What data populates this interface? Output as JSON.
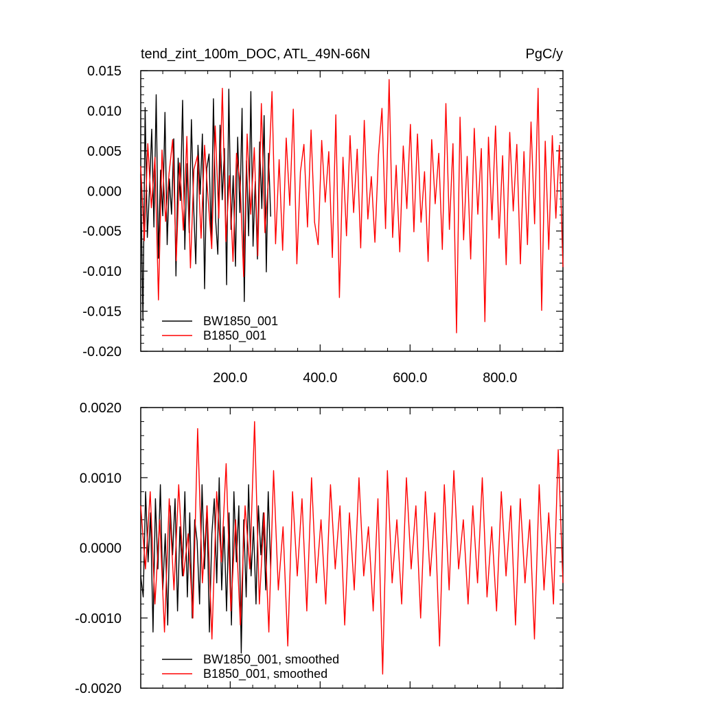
{
  "chart_data": [
    {
      "type": "line",
      "title": "tend_zint_100m_DOC, ATL_49N-66N",
      "units": "PgC/y",
      "xlim": [
        1,
        940
      ],
      "ylim": [
        -0.02,
        0.015
      ],
      "yticks": [
        -0.02,
        -0.015,
        -0.01,
        -0.005,
        0.0,
        0.005,
        0.01,
        0.015
      ],
      "ytick_labels": [
        "-0.020",
        "-0.015",
        "-0.010",
        "-0.005",
        "0.000",
        "0.005",
        "0.010",
        "0.015"
      ],
      "xticks": [
        200,
        400,
        600,
        800
      ],
      "xtick_labels": [
        "200.0",
        "400.0",
        "600.0",
        "800.0"
      ],
      "legend_position": "bottom-left",
      "series": [
        {
          "name": "BW1850_001",
          "color": "#000000",
          "x_range": [
            1,
            290
          ],
          "values": [
            0.0021,
            -0.0162,
            0.0104,
            -0.0058,
            0.0003,
            0.0077,
            -0.0045,
            0.012,
            -0.0084,
            0.0026,
            -0.0031,
            0.0098,
            -0.0067,
            0.0015,
            -0.0029,
            0.0065,
            -0.0106,
            0.0041,
            -0.0012,
            0.0113,
            -0.0073,
            0.0034,
            -0.0052,
            0.0089,
            -0.0018,
            -0.0091,
            0.0057,
            -0.0004,
            0.0071,
            -0.0122,
            0.0028,
            0.0046,
            -0.0063,
            0.0115,
            -0.0036,
            -0.0079,
            0.0082,
            -0.0011,
            0.0053,
            -0.0117,
            0.0127,
            -0.0048,
            0.0019,
            -0.0094,
            0.0067,
            -0.0027,
            0.0103,
            -0.0138,
            0.0038,
            -0.0056,
            0.0124,
            -0.0069,
            0.0012,
            -0.0085,
            0.0061,
            -0.0022,
            0.0094,
            -0.0101,
            0.0047,
            -0.0032
          ]
        },
        {
          "name": "B1850_001",
          "color": "#ff0000",
          "x_range": [
            1,
            940
          ],
          "values": [
            0.0031,
            -0.0062,
            0.0059,
            -0.0021,
            0.0042,
            -0.0136,
            0.0051,
            -0.0038,
            0.0022,
            0.0064,
            -0.0087,
            0.0035,
            -0.0049,
            0.0068,
            -0.0096,
            0.0027,
            0.0044,
            -0.0059,
            0.0057,
            -0.0011,
            -0.0072,
            0.0081,
            -0.0034,
            0.0128,
            -0.0063,
            0.0019,
            -0.0088,
            0.0047,
            0.0012,
            -0.0107,
            0.0071,
            -0.0029,
            0.0054,
            -0.0081,
            0.0109,
            -0.0052,
            0.0016,
            0.0124,
            -0.0066,
            0.0039,
            -0.0074,
            0.0066,
            -0.0018,
            0.0102,
            -0.0091,
            0.0024,
            0.0058,
            -0.0045,
            0.0076,
            -0.0039,
            -0.0067,
            0.0063,
            -0.0014,
            0.0049,
            -0.0083,
            0.0095,
            -0.0133,
            0.0042,
            -0.0056,
            0.0069,
            -0.0027,
            0.0052,
            -0.0071,
            0.0088,
            -0.0035,
            0.0018,
            -0.0064,
            0.0045,
            0.0103,
            -0.0047,
            0.0139,
            -0.0058,
            0.0032,
            -0.0076,
            0.0056,
            -0.0022,
            0.0083,
            -0.0051,
            0.0071,
            -0.0039,
            0.0024,
            -0.0088,
            0.0064,
            -0.0016,
            0.0047,
            -0.0073,
            0.0109,
            -0.0048,
            0.0059,
            -0.0177,
            0.0092,
            -0.0061,
            0.0043,
            -0.0085,
            0.0078,
            -0.0029,
            0.0053,
            -0.0163,
            0.0067,
            -0.0036,
            0.0081,
            -0.0059,
            0.0044,
            -0.0092,
            0.0073,
            -0.0025,
            0.0058,
            -0.0091,
            0.0049,
            -0.0067,
            0.0086,
            -0.0041,
            0.0128,
            -0.0149,
            0.0062,
            -0.0073,
            0.0069,
            -0.0034,
            0.0057,
            -0.0095
          ]
        }
      ]
    },
    {
      "type": "line",
      "title": "",
      "xlim": [
        1,
        940
      ],
      "ylim": [
        -0.002,
        0.002
      ],
      "yticks": [
        -0.002,
        -0.001,
        0.0,
        0.001,
        0.002
      ],
      "ytick_labels": [
        "-0.0020",
        "-0.0010",
        "0.0000",
        "0.0010",
        "0.0020"
      ],
      "legend_position": "bottom-left",
      "series": [
        {
          "name": "BW1850_001, smoothed",
          "color": "#000000",
          "x_range": [
            1,
            290
          ],
          "values": [
            -0.0004,
            -0.0007,
            0.0008,
            -0.0002,
            0.0005,
            -0.0012,
            0.0007,
            -0.0003,
            0.0009,
            -0.0006,
            0.0002,
            -0.0011,
            0.0006,
            -0.0001,
            0.0007,
            -0.0009,
            0.0003,
            -0.0004,
            0.0008,
            -0.0007,
            0.0005,
            -0.001,
            0.0004,
            0.0001,
            -0.0008,
            0.0009,
            -0.0003,
            0.0006,
            -0.0012,
            0.0002,
            0.0007,
            -0.0005,
            0.001,
            -0.0006,
            0.0003,
            -0.0009,
            0.0005,
            -0.0011,
            0.0008,
            -0.0002,
            0.0006,
            -0.0015,
            0.0004,
            -0.0007,
            0.0009,
            -0.0004,
            0.0003,
            -0.0008,
            0.0006,
            -0.0001,
            0.0005,
            -0.0006,
            0.0008,
            -0.0003
          ]
        },
        {
          "name": "B1850_001, smoothed",
          "color": "#ff0000",
          "x_range": [
            1,
            940
          ],
          "values": [
            0.0006,
            -0.0003,
            0.0008,
            -0.0008,
            0.0004,
            -0.0012,
            0.0007,
            -0.0006,
            0.0009,
            -0.0004,
            0.0002,
            -0.001,
            0.0017,
            -0.0005,
            0.0006,
            -0.0013,
            0.0008,
            -0.0002,
            0.0012,
            -0.0009,
            0.0004,
            -0.0011,
            0.0006,
            -0.0003,
            0.0018,
            -0.0008,
            0.0005,
            -0.0012,
            0.0011,
            -0.0006,
            0.0003,
            -0.0014,
            0.0008,
            -0.0004,
            0.0007,
            -0.0009,
            0.001,
            -0.0005,
            0.0004,
            -0.0008,
            0.0009,
            -0.0003,
            0.0006,
            -0.0011,
            0.0005,
            -0.0006,
            0.001,
            -0.0004,
            0.0003,
            -0.0009,
            0.0007,
            -0.0018,
            0.0011,
            -0.0005,
            0.0004,
            -0.0008,
            0.001,
            -0.0003,
            0.0006,
            -0.001,
            0.0008,
            -0.0004,
            0.0005,
            -0.0014,
            0.0009,
            -0.0006,
            0.0011,
            -0.0003,
            0.0004,
            -0.0008,
            0.0006,
            -0.0005,
            0.001,
            -0.0007,
            0.0003,
            -0.0009,
            0.0008,
            -0.0004,
            0.0006,
            -0.0011,
            0.0007,
            -0.0005,
            0.0004,
            -0.0013,
            0.0009,
            -0.0006,
            0.0005,
            -0.0008,
            0.0014,
            -0.0005
          ]
        }
      ]
    }
  ]
}
